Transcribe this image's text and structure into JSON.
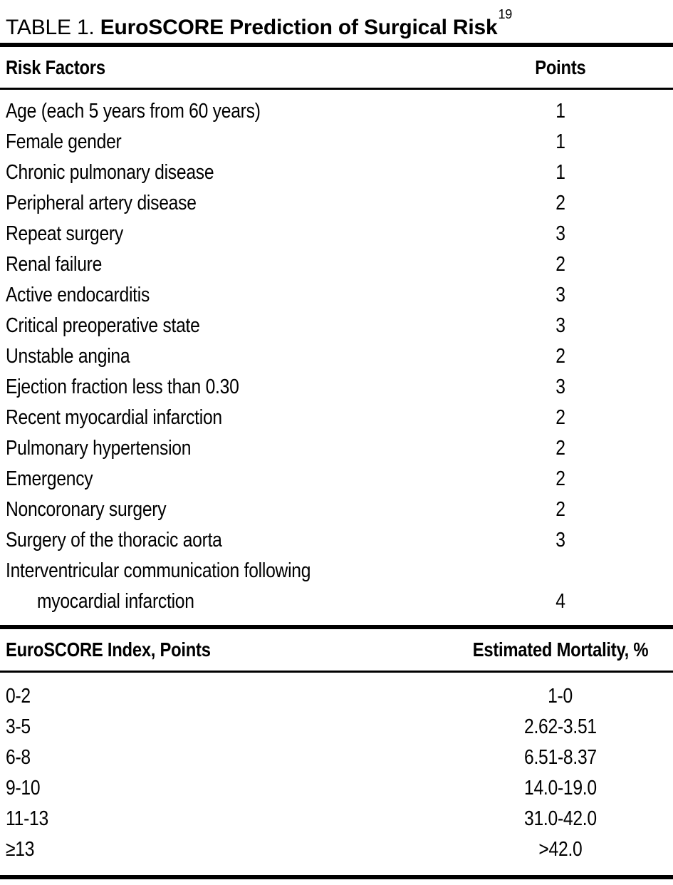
{
  "title": {
    "label": "TABLE 1.",
    "text": "EuroSCORE Prediction of Surgical Risk",
    "reference": "19"
  },
  "risk_table": {
    "col1_header": "Risk Factors",
    "col2_header": "Points",
    "rows": [
      {
        "factor": "Age (each 5 years from 60 years)",
        "points": "1"
      },
      {
        "factor": "Female gender",
        "points": "1"
      },
      {
        "factor": "Chronic pulmonary disease",
        "points": "1"
      },
      {
        "factor": "Peripheral artery disease",
        "points": "2"
      },
      {
        "factor": "Repeat surgery",
        "points": "3"
      },
      {
        "factor": "Renal failure",
        "points": "2"
      },
      {
        "factor": "Active endocarditis",
        "points": "3"
      },
      {
        "factor": "Critical preoperative state",
        "points": "3"
      },
      {
        "factor": "Unstable angina",
        "points": "2"
      },
      {
        "factor": "Ejection fraction less than 0.30",
        "points": "3"
      },
      {
        "factor": "Recent myocardial infarction",
        "points": "2"
      },
      {
        "factor": "Pulmonary hypertension",
        "points": "2"
      },
      {
        "factor": "Emergency",
        "points": "2"
      },
      {
        "factor": "Noncoronary surgery",
        "points": "2"
      },
      {
        "factor": "Surgery of the thoracic aorta",
        "points": "3"
      },
      {
        "factor": "Interventricular communication following",
        "factor_line2": "myocardial infarction",
        "points": "4"
      }
    ]
  },
  "mortality_table": {
    "col1_header": "EuroSCORE Index, Points",
    "col2_header": "Estimated Mortality, %",
    "rows": [
      {
        "index": "0-2",
        "mortality": "1-0"
      },
      {
        "index": "3-5",
        "mortality": "2.62-3.51"
      },
      {
        "index": "6-8",
        "mortality": "6.51-8.37"
      },
      {
        "index": "9-10",
        "mortality": "14.0-19.0"
      },
      {
        "index": "11-13",
        "mortality": "31.0-42.0"
      },
      {
        "index": "≥13",
        "mortality": ">42.0"
      }
    ]
  },
  "colors": {
    "text": "#000000",
    "background": "#ffffff",
    "rule": "#000000"
  }
}
